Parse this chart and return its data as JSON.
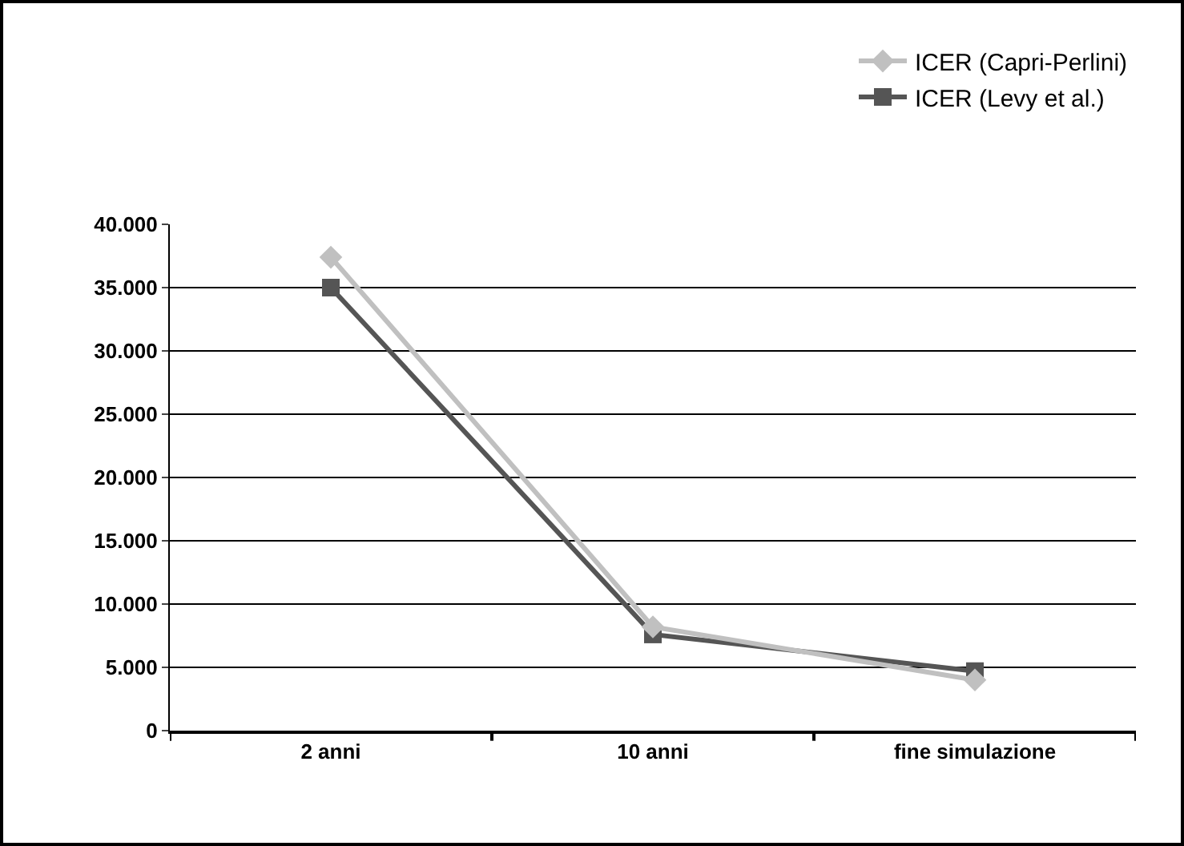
{
  "chart_data": {
    "type": "line",
    "categories": [
      "2 anni",
      "10 anni",
      "fine simulazione"
    ],
    "series": [
      {
        "name": "ICER (Capri-Perlini)",
        "color": "#c0c0c0",
        "marker": "diamond",
        "values": [
          37400,
          8200,
          4000
        ]
      },
      {
        "name": "ICER (Levy et al.)",
        "color": "#555555",
        "marker": "square",
        "values": [
          35000,
          7600,
          4700
        ]
      }
    ],
    "ylim": [
      0,
      40000
    ],
    "yticks": [
      {
        "value": 0,
        "label": "0"
      },
      {
        "value": 5000,
        "label": "5.000"
      },
      {
        "value": 10000,
        "label": "10.000"
      },
      {
        "value": 15000,
        "label": "15.000"
      },
      {
        "value": 20000,
        "label": "20.000"
      },
      {
        "value": 25000,
        "label": "25.000"
      },
      {
        "value": 30000,
        "label": "30.000"
      },
      {
        "value": 35000,
        "label": "35.000"
      },
      {
        "value": 40000,
        "label": "40.000"
      }
    ],
    "grid": "y",
    "legend": "top right",
    "line_style": "solid"
  }
}
